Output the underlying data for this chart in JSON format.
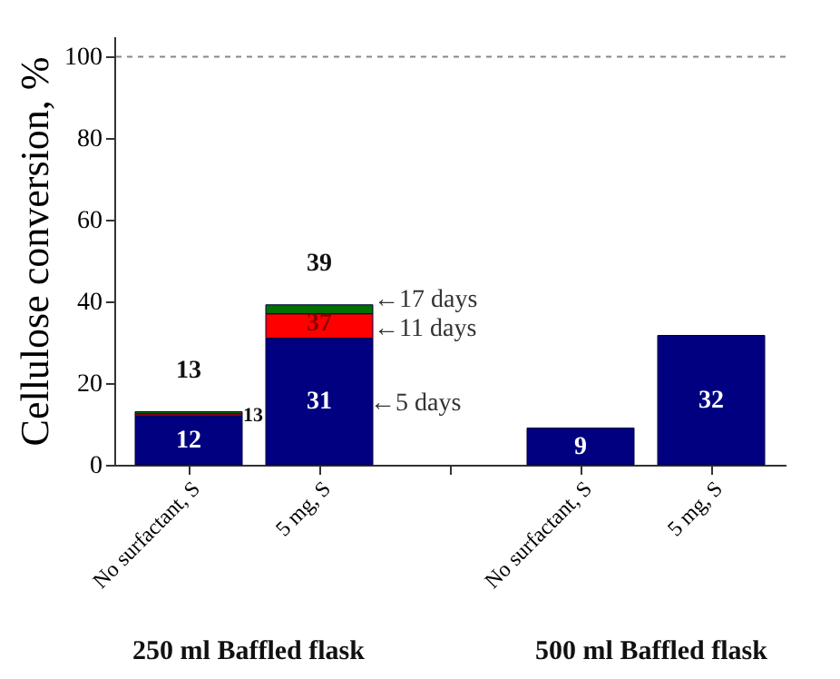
{
  "chart_data": {
    "type": "bar",
    "stacked": true,
    "ylabel": "Cellulose conversion, %",
    "categories": [
      "No surfactant, S",
      "5 mg, S",
      null,
      "No surfactant, S",
      "5 mg, S"
    ],
    "series": [
      {
        "color": "#000080",
        "values": [
          12,
          31,
          null,
          9,
          31.7
        ],
        "value_labels": [
          "12",
          "31",
          null,
          "9",
          "32"
        ]
      },
      {
        "color": "#ff0000",
        "values": [
          0.5,
          6,
          null,
          null,
          null
        ]
      },
      {
        "color": "#007000",
        "values": [
          0.5,
          2.2,
          null,
          null,
          null
        ]
      }
    ],
    "totals": [
      "13",
      "39",
      null,
      null,
      null
    ],
    "ylim": [
      0,
      105
    ],
    "yticks": [
      0,
      20,
      40,
      60,
      80,
      100
    ],
    "ref_lines": [
      {
        "axis": "y",
        "value": 100,
        "color": "#888888",
        "line_style": "dashed"
      }
    ],
    "grid": false,
    "annotations": [
      {
        "text": "13",
        "x": "No surfactant, S",
        "y": 13
      },
      {
        "text": "37",
        "x": "5 mg, S",
        "y": 37
      },
      {
        "text": "←17 days",
        "x": "5 mg, S",
        "y": 39.2
      },
      {
        "text": "←11 days",
        "x": "5 mg, S",
        "y": 37
      },
      "←5 days",
      "250 ml Baffled flask",
      "500 ml Baffled flask"
    ]
  }
}
